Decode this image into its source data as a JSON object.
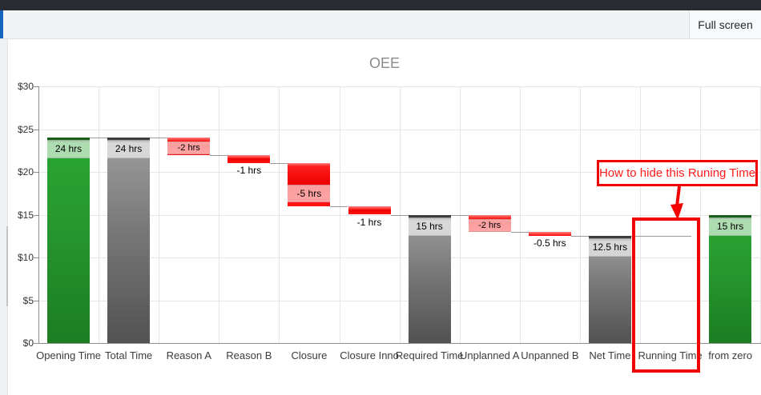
{
  "header": {
    "fullscreen_label": "Full screen",
    "accent_color": "#1565c0"
  },
  "chart_data": {
    "type": "waterfall",
    "title": "OEE",
    "xlabel": "",
    "ylabel": "",
    "ylim": [
      0,
      30
    ],
    "ytick_step": 5,
    "ytick_labels": [
      "$0",
      "$5",
      "$10",
      "$15",
      "$20",
      "$25",
      "$30"
    ],
    "grid": true,
    "legend": "none",
    "categories": [
      "Opening Time",
      "Total Time",
      "Reason A",
      "Reason B",
      "Closure",
      "Closure Inno",
      "Required Time",
      "Unplanned A",
      "Unpanned B",
      "Net Time",
      "Running Time",
      "from zero"
    ],
    "bars": [
      {
        "category": "Opening Time",
        "value": 24,
        "start": 0,
        "end": 24,
        "color": "green",
        "data_label": "24 hrs",
        "label_placement": "inside-top"
      },
      {
        "category": "Total Time",
        "value": 24,
        "start": 0,
        "end": 24,
        "color": "gray",
        "data_label": "24 hrs",
        "label_placement": "inside-top"
      },
      {
        "category": "Reason A",
        "value": -2,
        "start": 24,
        "end": 22,
        "color": "red",
        "data_label": "-2 hrs",
        "label_placement": "inside-small"
      },
      {
        "category": "Reason B",
        "value": -1,
        "start": 22,
        "end": 21,
        "color": "red",
        "data_label": "-1 hrs",
        "label_placement": "below"
      },
      {
        "category": "Closure",
        "value": -5,
        "start": 21,
        "end": 16,
        "color": "red",
        "data_label": "-5 hrs",
        "label_placement": "inside-low"
      },
      {
        "category": "Closure Inno",
        "value": -1,
        "start": 16,
        "end": 15,
        "color": "red",
        "data_label": "-1 hrs",
        "label_placement": "below"
      },
      {
        "category": "Required Time",
        "value": 15,
        "start": 0,
        "end": 15,
        "color": "gray",
        "data_label": "15 hrs",
        "label_placement": "inside-top"
      },
      {
        "category": "Unplanned A",
        "value": -2,
        "start": 15,
        "end": 13,
        "color": "red",
        "data_label": "-2 hrs",
        "label_placement": "inside-small"
      },
      {
        "category": "Unpanned B",
        "value": -0.5,
        "start": 13,
        "end": 12.5,
        "color": "red",
        "data_label": "-0.5 hrs",
        "label_placement": "below"
      },
      {
        "category": "Net Time",
        "value": 12.5,
        "start": 0,
        "end": 12.5,
        "color": "gray",
        "data_label": "12.5 hrs",
        "label_placement": "inside-top"
      },
      {
        "category": "Running Time",
        "value": 0,
        "start": 12.5,
        "end": 12.5,
        "color": "hidden",
        "data_label": "",
        "label_placement": "none"
      },
      {
        "category": "from zero",
        "value": 15,
        "start": 0,
        "end": 15,
        "color": "green",
        "data_label": "15 hrs",
        "label_placement": "inside-top"
      }
    ],
    "connectors": [
      {
        "level": 24,
        "from": 0,
        "to": 1,
        "to_edge": "left"
      },
      {
        "level": 24,
        "from": 1,
        "to": 2,
        "to_edge": "left"
      },
      {
        "level": 22,
        "from": 2,
        "to": 3,
        "to_edge": "left"
      },
      {
        "level": 21,
        "from": 3,
        "to": 4,
        "to_edge": "left"
      },
      {
        "level": 16,
        "from": 4,
        "to": 5,
        "to_edge": "left"
      },
      {
        "level": 15,
        "from": 5,
        "to": 6,
        "to_edge": "left"
      },
      {
        "level": 15,
        "from": 6,
        "to": 7,
        "to_edge": "left"
      },
      {
        "level": 13,
        "from": 7,
        "to": 8,
        "to_edge": "left"
      },
      {
        "level": 12.5,
        "from": 8,
        "to": 9,
        "to_edge": "left"
      },
      {
        "level": 12.5,
        "from": 9,
        "to": 10,
        "to_edge": "right"
      }
    ],
    "colors": {
      "green": "#218c29",
      "gray": "#6e6e6e",
      "red": "#f20000",
      "grid": "#e6e6e6"
    }
  },
  "annotation": {
    "text": "How to hide this Runing Time",
    "color": "#ff0000",
    "highlight_category": "Running Time"
  }
}
